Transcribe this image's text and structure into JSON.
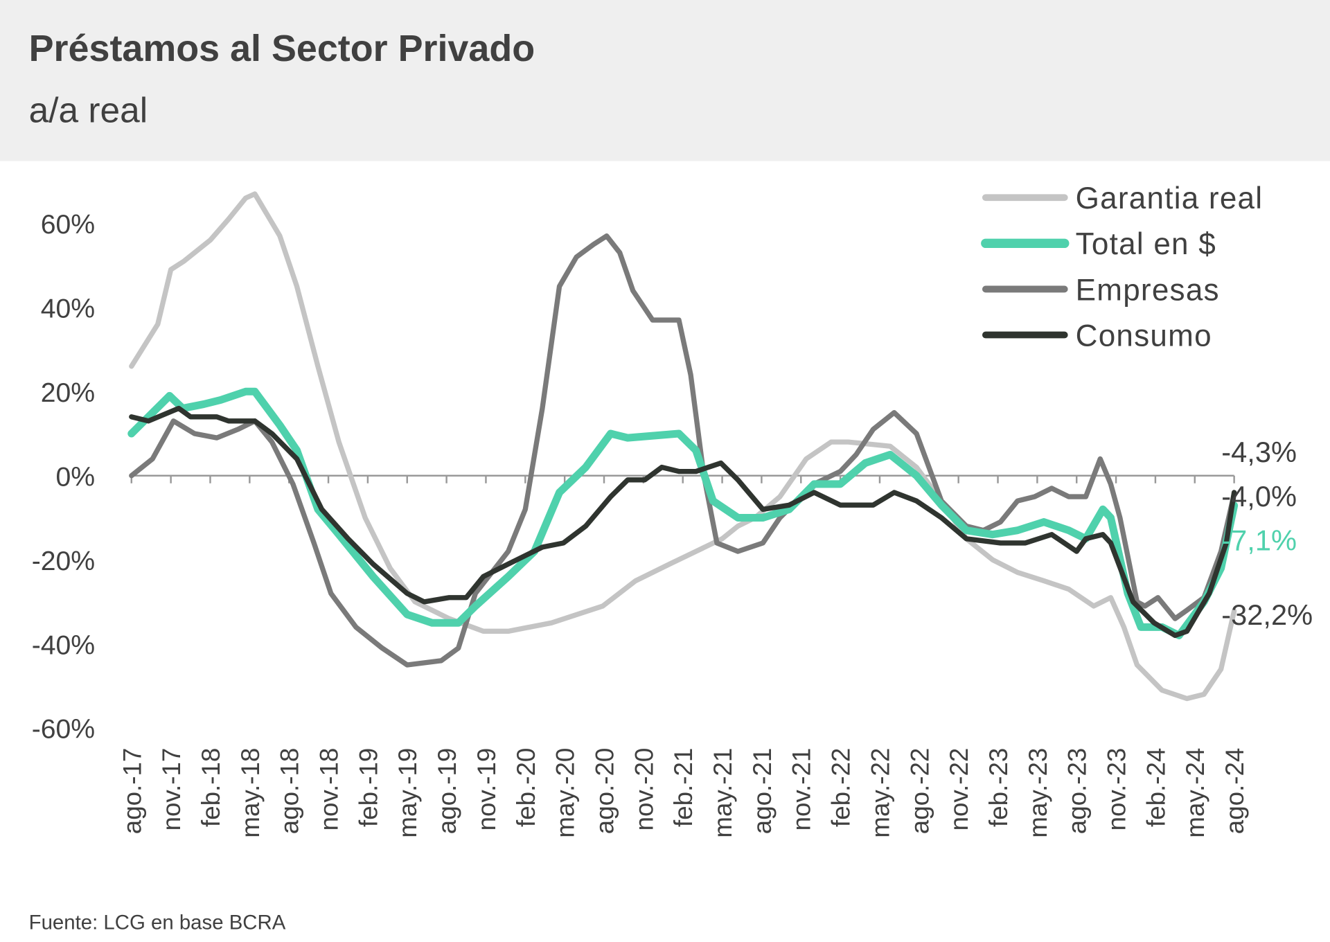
{
  "header": {
    "title": "Préstamos al Sector Privado",
    "subtitle": "a/a real"
  },
  "source": "Fuente: LCG en base BCRA",
  "colors": {
    "garantia": "#c4c4c4",
    "total": "#4fd1ac",
    "empresas": "#7a7a7a",
    "consumo": "#2f342f",
    "header_bg": "#efefef",
    "text": "#404040"
  },
  "chart_data": {
    "type": "line",
    "title": "Préstamos al Sector Privado",
    "subtitle": "a/a real",
    "xlabel": "",
    "ylabel": "",
    "ylim": [
      -60,
      60
    ],
    "yticks": [
      60,
      40,
      20,
      0,
      -20,
      -40,
      -60
    ],
    "ytick_labels": [
      "60%",
      "40%",
      "20%",
      "0%",
      "-20%",
      "-40%",
      "-60%"
    ],
    "x_unit": "months since ago.-17",
    "xlim": [
      0,
      84
    ],
    "xtick_labels": [
      "ago.-17",
      "nov.-17",
      "feb.-18",
      "may.-18",
      "ago.-18",
      "nov.-18",
      "feb.-19",
      "may.-19",
      "ago.-19",
      "nov.-19",
      "feb.-20",
      "may.-20",
      "ago.-20",
      "nov.-20",
      "feb.-21",
      "may.-21",
      "ago.-21",
      "nov.-21",
      "feb.-22",
      "may.-22",
      "ago.-22",
      "nov.-22",
      "feb.-23",
      "may.-23",
      "ago.-23",
      "nov.-23",
      "feb.-24",
      "may.-24",
      "ago.-24"
    ],
    "legend_position": "top-right",
    "series": [
      {
        "name": "Garantia real",
        "key": "garantia",
        "points": [
          [
            0,
            26
          ],
          [
            2,
            36
          ],
          [
            3,
            49
          ],
          [
            4,
            51
          ],
          [
            6,
            56
          ],
          [
            7.4,
            61
          ],
          [
            8.7,
            66
          ],
          [
            9.4,
            67
          ],
          [
            11.3,
            57
          ],
          [
            12.6,
            45
          ],
          [
            14.2,
            26
          ],
          [
            15.8,
            8
          ],
          [
            17.8,
            -10
          ],
          [
            19.7,
            -22
          ],
          [
            21.6,
            -30
          ],
          [
            24.2,
            -34
          ],
          [
            26.8,
            -37
          ],
          [
            28.7,
            -37
          ],
          [
            32,
            -35
          ],
          [
            35.9,
            -31
          ],
          [
            38.4,
            -25
          ],
          [
            41,
            -21
          ],
          [
            43,
            -18
          ],
          [
            45,
            -15
          ],
          [
            46.2,
            -12
          ],
          [
            47.5,
            -10
          ],
          [
            49.4,
            -5
          ],
          [
            51.4,
            4
          ],
          [
            53.3,
            8
          ],
          [
            54.6,
            8
          ],
          [
            57.8,
            7
          ],
          [
            59.8,
            2
          ],
          [
            61.7,
            -6
          ],
          [
            63.6,
            -15
          ],
          [
            65.6,
            -20
          ],
          [
            67.5,
            -23
          ],
          [
            69.5,
            -25
          ],
          [
            71.4,
            -27
          ],
          [
            73.3,
            -31
          ],
          [
            74.6,
            -29
          ],
          [
            75.6,
            -36
          ],
          [
            76.6,
            -45
          ],
          [
            78.5,
            -51
          ],
          [
            80.4,
            -53
          ],
          [
            81.7,
            -52
          ],
          [
            83,
            -46
          ],
          [
            84,
            -32.2
          ]
        ]
      },
      {
        "name": "Total en $",
        "key": "total",
        "points": [
          [
            0,
            10
          ],
          [
            2.9,
            19
          ],
          [
            3.9,
            16
          ],
          [
            5.5,
            17
          ],
          [
            6.8,
            18
          ],
          [
            8.7,
            20
          ],
          [
            9.4,
            20
          ],
          [
            11.3,
            12
          ],
          [
            12.6,
            6
          ],
          [
            14.2,
            -8
          ],
          [
            15.8,
            -14
          ],
          [
            18.4,
            -24
          ],
          [
            21,
            -33
          ],
          [
            22.9,
            -35
          ],
          [
            24.9,
            -35
          ],
          [
            26.2,
            -31
          ],
          [
            28.7,
            -24
          ],
          [
            30.7,
            -18
          ],
          [
            32.6,
            -4
          ],
          [
            34.6,
            2
          ],
          [
            36.5,
            10
          ],
          [
            37.8,
            9
          ],
          [
            41.7,
            10
          ],
          [
            43,
            6
          ],
          [
            44.3,
            -6
          ],
          [
            46.2,
            -10
          ],
          [
            48.1,
            -10
          ],
          [
            50.1,
            -8
          ],
          [
            52,
            -2
          ],
          [
            54,
            -2
          ],
          [
            55.9,
            3
          ],
          [
            57.8,
            5
          ],
          [
            59.8,
            0
          ],
          [
            61.7,
            -7
          ],
          [
            63.6,
            -13
          ],
          [
            65.6,
            -14
          ],
          [
            67.5,
            -13
          ],
          [
            69.5,
            -11
          ],
          [
            71.4,
            -13
          ],
          [
            72.7,
            -15
          ],
          [
            74,
            -8
          ],
          [
            74.6,
            -10
          ],
          [
            75.9,
            -28
          ],
          [
            76.9,
            -36
          ],
          [
            78.5,
            -36
          ],
          [
            79.8,
            -38
          ],
          [
            81.7,
            -30
          ],
          [
            83,
            -22
          ],
          [
            84,
            -7.1
          ]
        ]
      },
      {
        "name": "Empresas",
        "key": "empresas",
        "points": [
          [
            0,
            0
          ],
          [
            1.6,
            4
          ],
          [
            3.2,
            13
          ],
          [
            4.8,
            10
          ],
          [
            6.5,
            9
          ],
          [
            8.1,
            11
          ],
          [
            9.4,
            13
          ],
          [
            10.7,
            8
          ],
          [
            12.3,
            -2
          ],
          [
            13.9,
            -16
          ],
          [
            15.2,
            -28
          ],
          [
            17.1,
            -36
          ],
          [
            19.1,
            -41
          ],
          [
            21,
            -45
          ],
          [
            23.6,
            -44
          ],
          [
            24.9,
            -41
          ],
          [
            26.2,
            -28
          ],
          [
            28.7,
            -18
          ],
          [
            30,
            -8
          ],
          [
            31.3,
            16
          ],
          [
            32.6,
            45
          ],
          [
            33.9,
            52
          ],
          [
            35.2,
            55
          ],
          [
            36.2,
            57
          ],
          [
            37.2,
            53
          ],
          [
            38.2,
            44
          ],
          [
            39.7,
            37
          ],
          [
            41.7,
            37
          ],
          [
            42.6,
            24
          ],
          [
            43.6,
            0
          ],
          [
            44.6,
            -16
          ],
          [
            46.2,
            -18
          ],
          [
            48.1,
            -16
          ],
          [
            49.4,
            -10
          ],
          [
            50.7,
            -6
          ],
          [
            52,
            -2
          ],
          [
            54,
            1
          ],
          [
            55.2,
            5
          ],
          [
            56.5,
            11
          ],
          [
            58.1,
            15
          ],
          [
            59.8,
            10
          ],
          [
            61.7,
            -6
          ],
          [
            63.6,
            -12
          ],
          [
            64.9,
            -13
          ],
          [
            66.2,
            -11
          ],
          [
            67.5,
            -6
          ],
          [
            68.8,
            -5
          ],
          [
            70.1,
            -3
          ],
          [
            71.4,
            -5
          ],
          [
            72.7,
            -5
          ],
          [
            73.8,
            4
          ],
          [
            74.6,
            -2
          ],
          [
            75.3,
            -10
          ],
          [
            76.6,
            -30
          ],
          [
            77.2,
            -31
          ],
          [
            78.2,
            -29
          ],
          [
            79.5,
            -34
          ],
          [
            80.4,
            -32
          ],
          [
            81.7,
            -29
          ],
          [
            83,
            -18
          ],
          [
            84,
            -4.3
          ]
        ]
      },
      {
        "name": "Consumo",
        "key": "consumo",
        "points": [
          [
            0,
            14
          ],
          [
            1.3,
            13
          ],
          [
            3.6,
            16
          ],
          [
            4.5,
            14
          ],
          [
            5.5,
            14
          ],
          [
            6.5,
            14
          ],
          [
            7.4,
            13
          ],
          [
            9.4,
            13
          ],
          [
            10.7,
            10
          ],
          [
            12.6,
            4
          ],
          [
            14.5,
            -8
          ],
          [
            16.5,
            -15
          ],
          [
            18.4,
            -21
          ],
          [
            21,
            -28
          ],
          [
            22.3,
            -30
          ],
          [
            24.2,
            -29
          ],
          [
            25.5,
            -29
          ],
          [
            26.8,
            -24
          ],
          [
            28.7,
            -21
          ],
          [
            31.3,
            -17
          ],
          [
            32.9,
            -16
          ],
          [
            34.6,
            -12
          ],
          [
            36.5,
            -5
          ],
          [
            37.8,
            -1
          ],
          [
            39.1,
            -1
          ],
          [
            40.4,
            2
          ],
          [
            41.7,
            1
          ],
          [
            43,
            1
          ],
          [
            44.9,
            3
          ],
          [
            46.2,
            -1
          ],
          [
            48.1,
            -8
          ],
          [
            50.1,
            -7
          ],
          [
            52,
            -4
          ],
          [
            54,
            -7
          ],
          [
            56.5,
            -7
          ],
          [
            58.1,
            -4
          ],
          [
            59.8,
            -6
          ],
          [
            61.7,
            -10
          ],
          [
            63.6,
            -15
          ],
          [
            66.2,
            -16
          ],
          [
            68.1,
            -16
          ],
          [
            70.1,
            -14
          ],
          [
            72,
            -18
          ],
          [
            72.7,
            -15
          ],
          [
            74,
            -14
          ],
          [
            74.6,
            -16
          ],
          [
            76.3,
            -30
          ],
          [
            77.9,
            -35
          ],
          [
            79.5,
            -38
          ],
          [
            80.4,
            -37
          ],
          [
            82.1,
            -28
          ],
          [
            83.4,
            -16
          ],
          [
            84,
            -4.0
          ]
        ]
      }
    ],
    "annotations": [
      {
        "text": "-4,3%",
        "value": -4.3,
        "key": "empresas"
      },
      {
        "text": "-4,0%",
        "value": -4.0,
        "key": "consumo"
      },
      {
        "text": "-7,1%",
        "value": -7.1,
        "key": "total"
      },
      {
        "text": "-32,2%",
        "value": -32.2,
        "key": "garantia"
      }
    ]
  }
}
